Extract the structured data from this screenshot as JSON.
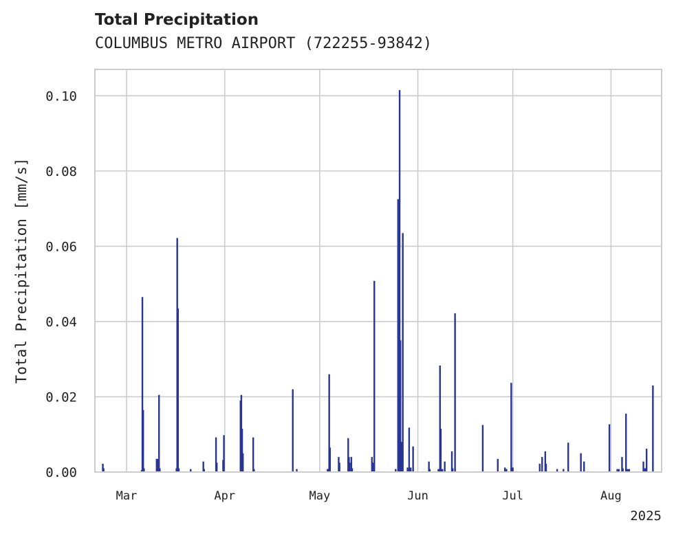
{
  "chart_data": {
    "type": "bar",
    "title": "Total Precipitation",
    "subtitle": "COLUMBUS METRO AIRPORT (722255-93842)",
    "xlabel": "",
    "ylabel": "Total Precipitation [mm/s]",
    "x_offset_label": "2025",
    "xlim": [
      "2025-02-19",
      "2025-08-17"
    ],
    "ylim": [
      0,
      0.107
    ],
    "x_ticks": [
      {
        "date": "2025-03-01",
        "label": "Mar"
      },
      {
        "date": "2025-04-01",
        "label": "Apr"
      },
      {
        "date": "2025-05-01",
        "label": "May"
      },
      {
        "date": "2025-06-01",
        "label": "Jun"
      },
      {
        "date": "2025-07-01",
        "label": "Jul"
      },
      {
        "date": "2025-08-01",
        "label": "Aug"
      }
    ],
    "y_ticks": [
      {
        "value": 0.0,
        "label": "0.00"
      },
      {
        "value": 0.02,
        "label": "0.02"
      },
      {
        "value": 0.04,
        "label": "0.04"
      },
      {
        "value": 0.06,
        "label": "0.06"
      },
      {
        "value": 0.08,
        "label": "0.08"
      },
      {
        "value": 0.1,
        "label": "0.10"
      }
    ],
    "grid": true,
    "bar_color": "#283593",
    "points": [
      [
        "2025-02-21T12:00",
        0.0022
      ],
      [
        "2025-02-21T18:00",
        0.001
      ],
      [
        "2025-03-05T18:00",
        0.0005
      ],
      [
        "2025-03-06T00:00",
        0.0465
      ],
      [
        "2025-03-06T06:00",
        0.0165
      ],
      [
        "2025-03-06T12:00",
        0.001
      ],
      [
        "2025-03-10T12:00",
        0.0035
      ],
      [
        "2025-03-10T18:00",
        0.0035
      ],
      [
        "2025-03-11T00:00",
        0.001
      ],
      [
        "2025-03-11T06:00",
        0.0205
      ],
      [
        "2025-03-11T12:00",
        0.001
      ],
      [
        "2025-03-16T18:00",
        0.001
      ],
      [
        "2025-03-17T00:00",
        0.0622
      ],
      [
        "2025-03-17T06:00",
        0.0435
      ],
      [
        "2025-03-17T12:00",
        0.001
      ],
      [
        "2025-03-21T06:00",
        0.0008
      ],
      [
        "2025-03-25T06:00",
        0.0028
      ],
      [
        "2025-03-25T12:00",
        0.0008
      ],
      [
        "2025-03-29T06:00",
        0.0092
      ],
      [
        "2025-03-29T12:00",
        0.0025
      ],
      [
        "2025-03-31T12:00",
        0.0032
      ],
      [
        "2025-03-31T18:00",
        0.0098
      ],
      [
        "2025-04-06T00:00",
        0.019
      ],
      [
        "2025-04-06T06:00",
        0.0205
      ],
      [
        "2025-04-06T12:00",
        0.0115
      ],
      [
        "2025-04-06T18:00",
        0.005
      ],
      [
        "2025-04-10T00:00",
        0.0092
      ],
      [
        "2025-04-10T06:00",
        0.0008
      ],
      [
        "2025-04-22T12:00",
        0.022
      ],
      [
        "2025-04-23T18:00",
        0.0008
      ],
      [
        "2025-05-03T12:00",
        0.0008
      ],
      [
        "2025-05-03T18:00",
        0.0008
      ],
      [
        "2025-05-04T00:00",
        0.026
      ],
      [
        "2025-05-04T06:00",
        0.0065
      ],
      [
        "2025-05-07T00:00",
        0.004
      ],
      [
        "2025-05-07T06:00",
        0.0025
      ],
      [
        "2025-05-10T00:00",
        0.009
      ],
      [
        "2025-05-10T06:00",
        0.004
      ],
      [
        "2025-05-10T12:00",
        0.0025
      ],
      [
        "2025-05-11T00:00",
        0.004
      ],
      [
        "2025-05-11T06:00",
        0.001
      ],
      [
        "2025-05-17T12:00",
        0.004
      ],
      [
        "2025-05-17T18:00",
        0.0025
      ],
      [
        "2025-05-18T06:00",
        0.0508
      ],
      [
        "2025-05-25T00:00",
        0.0008
      ],
      [
        "2025-05-25T18:00",
        0.0725
      ],
      [
        "2025-05-26T06:00",
        0.1015
      ],
      [
        "2025-05-26T12:00",
        0.035
      ],
      [
        "2025-05-26T18:00",
        0.008
      ],
      [
        "2025-05-27T06:00",
        0.0635
      ],
      [
        "2025-05-28T18:00",
        0.0012
      ],
      [
        "2025-05-29T06:00",
        0.0118
      ],
      [
        "2025-05-29T18:00",
        0.0012
      ],
      [
        "2025-05-30T12:00",
        0.0068
      ],
      [
        "2025-06-04T12:00",
        0.0028
      ],
      [
        "2025-06-04T18:00",
        0.0008
      ],
      [
        "2025-06-07T12:00",
        0.0008
      ],
      [
        "2025-06-08T00:00",
        0.0283
      ],
      [
        "2025-06-08T06:00",
        0.0115
      ],
      [
        "2025-06-08T18:00",
        0.0008
      ],
      [
        "2025-06-09T12:00",
        0.0028
      ],
      [
        "2025-06-11T18:00",
        0.0055
      ],
      [
        "2025-06-12T00:00",
        0.001
      ],
      [
        "2025-06-12T18:00",
        0.0422
      ],
      [
        "2025-06-21T12:00",
        0.0125
      ],
      [
        "2025-06-26T06:00",
        0.0035
      ],
      [
        "2025-06-28T12:00",
        0.0012
      ],
      [
        "2025-06-29T00:00",
        0.0008
      ],
      [
        "2025-06-30T12:00",
        0.0237
      ],
      [
        "2025-07-01T00:00",
        0.0012
      ],
      [
        "2025-07-09T12:00",
        0.0022
      ],
      [
        "2025-07-10T06:00",
        0.004
      ],
      [
        "2025-07-11T06:00",
        0.0055
      ],
      [
        "2025-07-11T12:00",
        0.0022
      ],
      [
        "2025-07-15T00:00",
        0.0008
      ],
      [
        "2025-07-17T00:00",
        0.0008
      ],
      [
        "2025-07-18T12:00",
        0.0078
      ],
      [
        "2025-07-22T12:00",
        0.005
      ],
      [
        "2025-07-23T12:00",
        0.0028
      ],
      [
        "2025-07-31T12:00",
        0.0127
      ],
      [
        "2025-08-03T00:00",
        0.0008
      ],
      [
        "2025-08-03T12:00",
        0.0008
      ],
      [
        "2025-08-04T12:00",
        0.004
      ],
      [
        "2025-08-04T18:00",
        0.001
      ],
      [
        "2025-08-05T18:00",
        0.0155
      ],
      [
        "2025-08-06T06:00",
        0.0008
      ],
      [
        "2025-08-06T18:00",
        0.0008
      ],
      [
        "2025-08-11T06:00",
        0.0028
      ],
      [
        "2025-08-11T18:00",
        0.001
      ],
      [
        "2025-08-12T06:00",
        0.0062
      ],
      [
        "2025-08-14T06:00",
        0.023
      ]
    ]
  }
}
